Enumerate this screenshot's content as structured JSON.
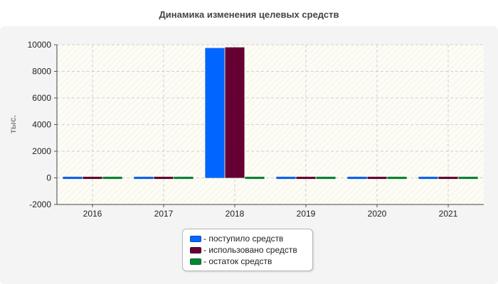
{
  "chart_data": {
    "type": "bar",
    "title": "Динамика изменения целевых средств",
    "ylabel": "тыс.",
    "xlabel": "",
    "categories": [
      "2016",
      "2017",
      "2018",
      "2019",
      "2020",
      "2021"
    ],
    "ylim": [
      -2000,
      10000
    ],
    "yticks": [
      -2000,
      0,
      2000,
      4000,
      6000,
      8000,
      10000
    ],
    "grid": true,
    "legend_position": "bottom",
    "series": [
      {
        "name": "- поступило средств",
        "color": "#0066ff",
        "values": [
          80,
          80,
          9750,
          80,
          80,
          80
        ]
      },
      {
        "name": "- использовано средств",
        "color": "#660033",
        "values": [
          80,
          80,
          9800,
          80,
          80,
          80
        ]
      },
      {
        "name": "- остаток средств",
        "color": "#008833",
        "values": [
          80,
          80,
          80,
          80,
          80,
          80
        ]
      }
    ]
  }
}
